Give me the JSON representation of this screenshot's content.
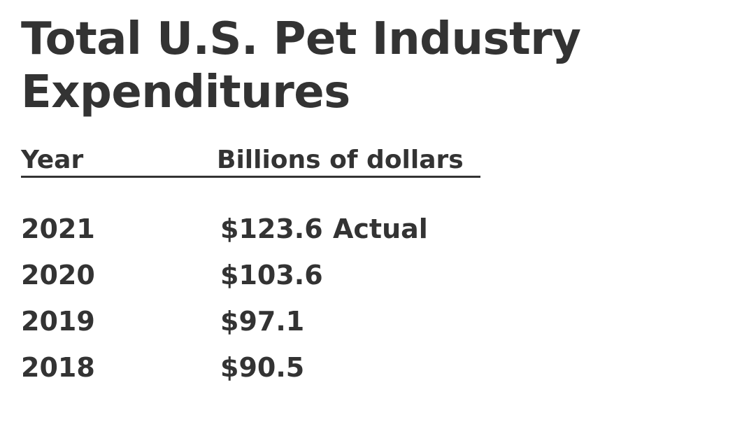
{
  "chart_data": {
    "type": "table",
    "title": "Total U.S. Pet Industry Expenditures",
    "columns": [
      "Year",
      "Billions of dollars"
    ],
    "rows": [
      {
        "year": "2021",
        "value": "$123.6",
        "note": "Actual"
      },
      {
        "year": "2020",
        "value": "$103.6",
        "note": ""
      },
      {
        "year": "2019",
        "value": "$97.1",
        "note": ""
      },
      {
        "year": "2018",
        "value": "$90.5",
        "note": ""
      }
    ],
    "x": [
      2021,
      2020,
      2019,
      2018
    ],
    "values": [
      123.6,
      103.6,
      97.1,
      90.5
    ],
    "ylabel": "Billions of dollars",
    "colors": {
      "text": "#333333",
      "background": "#ffffff"
    }
  }
}
